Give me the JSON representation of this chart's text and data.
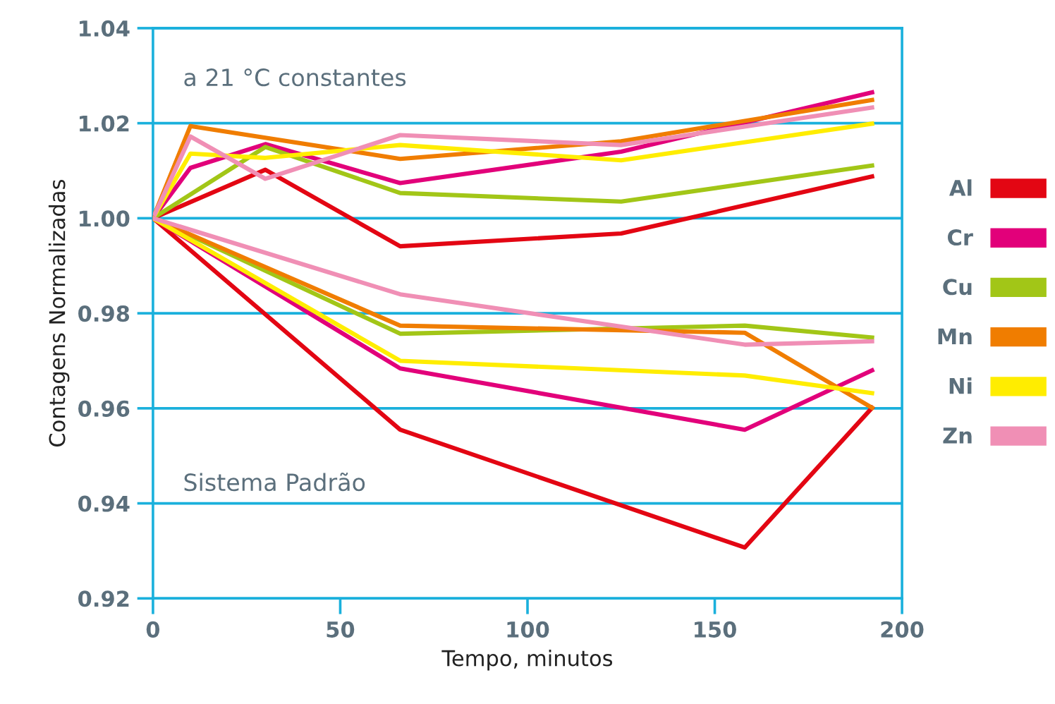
{
  "chart_data": {
    "type": "line",
    "xlabel": "Tempo, minutos",
    "ylabel": "Contagens Normalizadas",
    "annotations": [
      "a 21 °C constantes",
      "Sistema Padrão"
    ],
    "xlim": [
      0,
      200
    ],
    "xticks": [
      0,
      50,
      100,
      150,
      200
    ],
    "ylim": [
      0.92,
      1.04
    ],
    "yticks": [
      0.92,
      0.94,
      0.96,
      0.98,
      {
        "value": 1.0,
        "label": "1.00"
      },
      1.02,
      1.04
    ],
    "grid": "y",
    "legend": "right",
    "marker": "none",
    "line_style": "solid",
    "series": [
      {
        "name": "Al",
        "color": "#e30613",
        "x": [
          0,
          30,
          66,
          125,
          192
        ],
        "values": [
          1.0,
          1.0102,
          0.9941,
          0.9968,
          1.0088
        ]
      },
      {
        "name": "Cr",
        "color": "#e2007a",
        "x": [
          0,
          10,
          30,
          66,
          125,
          192
        ],
        "values": [
          1.0,
          1.0106,
          1.0156,
          1.0074,
          1.014,
          1.0265
        ]
      },
      {
        "name": "Cu",
        "color": "#a2c617",
        "x": [
          0,
          30,
          66,
          125,
          192
        ],
        "values": [
          1.0,
          1.015,
          1.0053,
          1.0035,
          1.0111
        ]
      },
      {
        "name": "Mn",
        "color": "#f07d00",
        "x": [
          0,
          10,
          66,
          125,
          192
        ],
        "values": [
          1.0,
          1.0194,
          1.0125,
          1.0162,
          1.0249
        ]
      },
      {
        "name": "Ni",
        "color": "#ffed00",
        "x": [
          0,
          10,
          30,
          66,
          125,
          192
        ],
        "values": [
          1.0,
          1.0136,
          1.0127,
          1.0154,
          1.0122,
          1.0199
        ]
      },
      {
        "name": "Zn",
        "color": "#f08fb5",
        "x": [
          0,
          10,
          30,
          66,
          125,
          192
        ],
        "values": [
          1.0,
          1.0172,
          1.0083,
          1.0175,
          1.0154,
          1.0233
        ]
      },
      {
        "color": "#e30613",
        "x": [
          0,
          66,
          158,
          192
        ],
        "values": [
          1.0,
          0.9555,
          0.9307,
          0.9601
        ]
      },
      {
        "color": "#e2007a",
        "x": [
          0,
          66,
          158,
          192
        ],
        "values": [
          1.0,
          0.9684,
          0.9555,
          0.968
        ]
      },
      {
        "color": "#a2c617",
        "x": [
          0,
          66,
          158,
          192
        ],
        "values": [
          1.0,
          0.9757,
          0.9774,
          0.9749
        ]
      },
      {
        "color": "#f07d00",
        "x": [
          0,
          66,
          158,
          192
        ],
        "values": [
          1.0,
          0.9774,
          0.9759,
          0.9601
        ]
      },
      {
        "color": "#ffed00",
        "x": [
          0,
          66,
          158,
          192
        ],
        "values": [
          1.0,
          0.97,
          0.9669,
          0.9632
        ]
      },
      {
        "color": "#f08fb5",
        "x": [
          0,
          66,
          158,
          192
        ],
        "values": [
          1.0,
          0.984,
          0.9734,
          0.9741
        ]
      }
    ]
  }
}
